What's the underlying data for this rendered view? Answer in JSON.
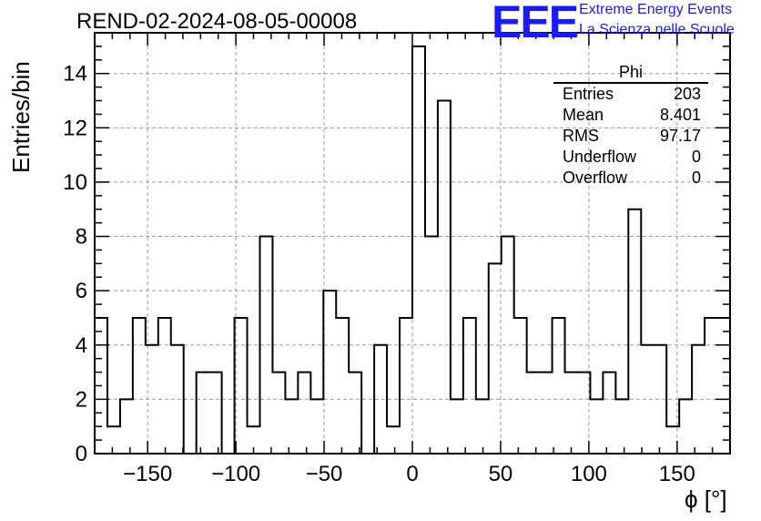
{
  "header": {
    "title": "REND-02-2024-08-05-00008",
    "logo_text": "EEE",
    "org_line1": "Extreme Energy Events",
    "org_line2": "La Scienza nelle Scuole"
  },
  "stats_box": {
    "name": "Phi",
    "rows": [
      {
        "label": "Entries",
        "value": "203"
      },
      {
        "label": "Mean",
        "value": "8.401"
      },
      {
        "label": "RMS",
        "value": "97.17"
      },
      {
        "label": "Underflow",
        "value": "0"
      },
      {
        "label": "Overflow",
        "value": "0"
      }
    ]
  },
  "chart_data": {
    "type": "bar",
    "title": "REND-02-2024-08-05-00008",
    "xlabel": "ϕ [°]",
    "ylabel": "Entries/bin",
    "xlim": [
      -180,
      180
    ],
    "ylim": [
      0,
      15.5
    ],
    "bin_width": 7.2,
    "x_ticks": [
      -150,
      -100,
      -50,
      0,
      50,
      100,
      150
    ],
    "y_ticks": [
      0,
      2,
      4,
      6,
      8,
      10,
      12,
      14
    ],
    "grid": true,
    "series": [
      {
        "values": [
          5,
          1,
          2,
          5,
          4,
          5,
          4,
          0,
          3,
          3,
          0,
          5,
          1,
          8,
          3,
          2,
          3,
          2,
          6,
          5,
          3,
          0,
          4,
          1,
          5,
          15,
          8,
          13,
          2,
          5,
          2,
          7,
          8,
          5,
          3,
          3,
          5,
          3,
          3,
          2,
          3,
          2,
          9,
          4,
          4,
          1,
          2,
          4,
          5,
          5
        ]
      }
    ]
  }
}
